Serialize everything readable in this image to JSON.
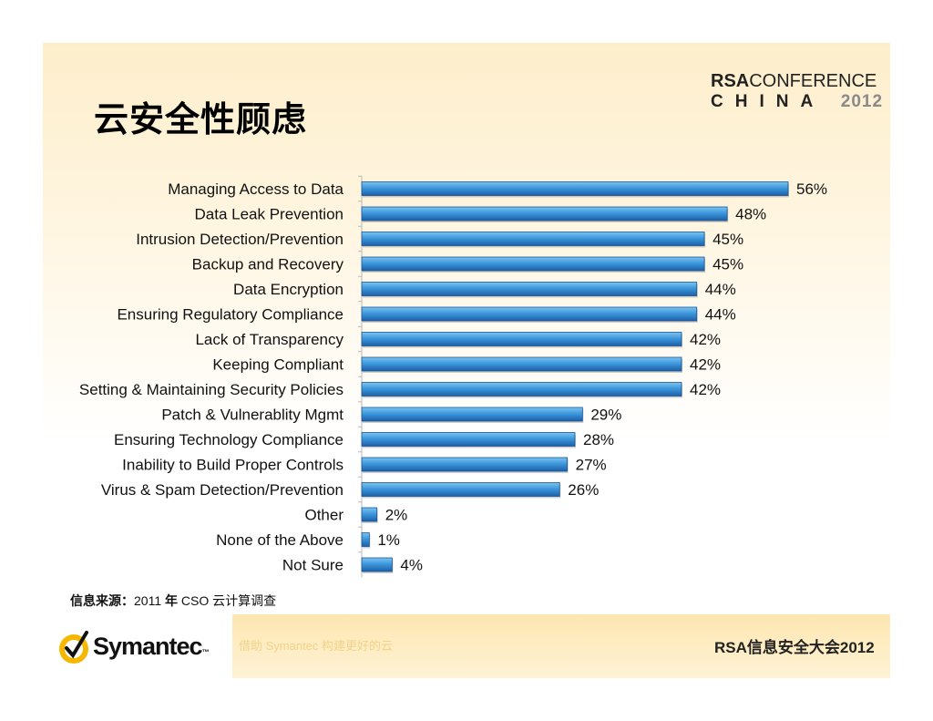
{
  "title": "云安全性顾虑",
  "conference": {
    "brand": "RSA",
    "word": "CONFERENCE",
    "country": "CHINA",
    "year": "2012"
  },
  "source": {
    "label": "信息来源：",
    "year": "2011",
    "year_suffix": "年",
    "text": "CSO 云计算调查"
  },
  "footer": {
    "slogan": "借助 Symantec 构建更好的云",
    "event": "RSA信息安全大会2012"
  },
  "vendor": {
    "name": "Symantec",
    "tm": "™"
  },
  "colors": {
    "bar_top": "#7dc4f0",
    "bar_mid": "#3d97dc",
    "bar_bottom": "#1d5fa8",
    "accent": "#f5b700"
  },
  "chart_data": {
    "type": "bar",
    "orientation": "horizontal",
    "title": "",
    "categories": [
      "Managing Access to Data",
      "Data Leak Prevention",
      "Intrusion Detection/Prevention",
      "Backup and Recovery",
      "Data Encryption",
      "Ensuring Regulatory Compliance",
      "Lack of Transparency",
      "Keeping Compliant",
      "Setting & Maintaining Security Policies",
      "Patch & Vulnerablity Mgmt",
      "Ensuring Technology Compliance",
      "Inability to Build Proper Controls",
      "Virus & Spam Detection/Prevention",
      "Other",
      "None of the Above",
      "Not Sure"
    ],
    "values": [
      56,
      48,
      45,
      45,
      44,
      44,
      42,
      42,
      42,
      29,
      28,
      27,
      26,
      2,
      1,
      4
    ],
    "value_labels": [
      "56%",
      "48%",
      "45%",
      "45%",
      "44%",
      "44%",
      "42%",
      "42%",
      "42%",
      "29%",
      "28%",
      "27%",
      "26%",
      "2%",
      "1%",
      "4%"
    ],
    "unit": "%",
    "xlim": [
      0,
      56
    ]
  }
}
